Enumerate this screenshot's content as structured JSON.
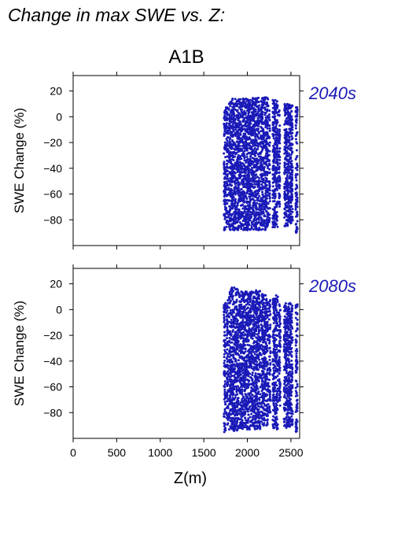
{
  "figure": {
    "title": "Change in max SWE vs. Z:",
    "scenario": "A1B",
    "series_color": "#1a1ab8"
  },
  "chart_data": [
    {
      "type": "scatter",
      "panel_label": "2040s",
      "xlabel": "",
      "ylabel": "SWE Change (%)",
      "xlim": [
        0,
        2600
      ],
      "ylim": [
        -100,
        32
      ],
      "xticks": [
        0,
        500,
        1000,
        1500,
        2000,
        2500
      ],
      "xtick_labels": [],
      "yticks": [
        20,
        0,
        -20,
        -40,
        -60,
        -80
      ],
      "ytick_labels": [
        "20",
        "0",
        "−20",
        "−40",
        "−60",
        "−80"
      ],
      "points": [
        [
          1735,
          -88
        ],
        [
          1740,
          -60
        ],
        [
          1745,
          -20
        ],
        [
          1750,
          5
        ],
        [
          1760,
          -75
        ],
        [
          1770,
          -45
        ],
        [
          1790,
          10
        ],
        [
          1800,
          -85
        ],
        [
          1810,
          -30
        ],
        [
          1830,
          14
        ],
        [
          1850,
          -88
        ],
        [
          1860,
          -50
        ],
        [
          1880,
          12
        ],
        [
          1900,
          -80
        ],
        [
          1920,
          -10
        ],
        [
          1950,
          14
        ],
        [
          1980,
          -70
        ],
        [
          2000,
          -88
        ],
        [
          2010,
          -35
        ],
        [
          2030,
          13
        ],
        [
          2050,
          -85
        ],
        [
          2070,
          -20
        ],
        [
          2090,
          14
        ],
        [
          2100,
          -60
        ],
        [
          2130,
          -88
        ],
        [
          2160,
          12
        ],
        [
          2180,
          -40
        ],
        [
          2200,
          15
        ],
        [
          2230,
          -80
        ],
        [
          2260,
          -20
        ],
        [
          2300,
          -85
        ],
        [
          2330,
          10
        ],
        [
          2350,
          -50
        ],
        [
          2370,
          -10
        ],
        [
          2430,
          9
        ],
        [
          2460,
          -70
        ],
        [
          2480,
          -30
        ],
        [
          2500,
          -80
        ],
        [
          2510,
          8
        ],
        [
          2560,
          -90
        ],
        [
          2570,
          -55
        ],
        [
          2575,
          5
        ]
      ],
      "clusters": [
        {
          "x_range": [
            1730,
            1750
          ],
          "y_range": [
            -88,
            5
          ]
        },
        {
          "x_range": [
            1755,
            1775
          ],
          "y_range": [
            -86,
            8
          ]
        },
        {
          "x_range": [
            1785,
            1870
          ],
          "y_range": [
            -88,
            14
          ]
        },
        {
          "x_range": [
            1875,
            2040
          ],
          "y_range": [
            -88,
            14
          ]
        },
        {
          "x_range": [
            2045,
            2140
          ],
          "y_range": [
            -88,
            15
          ]
        },
        {
          "x_range": [
            2150,
            2240
          ],
          "y_range": [
            -88,
            15
          ]
        },
        {
          "x_range": [
            2250,
            2260
          ],
          "y_range": [
            -82,
            10
          ]
        },
        {
          "x_range": [
            2290,
            2350
          ],
          "y_range": [
            -86,
            13
          ]
        },
        {
          "x_range": [
            2360,
            2375
          ],
          "y_range": [
            -70,
            5
          ]
        },
        {
          "x_range": [
            2425,
            2520
          ],
          "y_range": [
            -85,
            10
          ]
        },
        {
          "x_range": [
            2555,
            2575
          ],
          "y_range": [
            -90,
            10
          ]
        }
      ]
    },
    {
      "type": "scatter",
      "panel_label": "2080s",
      "xlabel": "Z(m)",
      "ylabel": "SWE Change (%)",
      "xlim": [
        0,
        2600
      ],
      "ylim": [
        -100,
        32
      ],
      "xticks": [
        0,
        500,
        1000,
        1500,
        2000,
        2500
      ],
      "xtick_labels": [
        "0",
        "500",
        "1000",
        "1500",
        "2000",
        "2500"
      ],
      "yticks": [
        20,
        0,
        -20,
        -40,
        -60,
        -80
      ],
      "ytick_labels": [
        "20",
        "0",
        "−20",
        "−40",
        "−60",
        "−80"
      ],
      "points": [
        [
          1735,
          -95
        ],
        [
          1740,
          -60
        ],
        [
          1745,
          -20
        ],
        [
          1750,
          5
        ],
        [
          1760,
          -80
        ],
        [
          1775,
          -40
        ],
        [
          1790,
          8
        ],
        [
          1810,
          -92
        ],
        [
          1830,
          -30
        ],
        [
          1850,
          17
        ],
        [
          1870,
          -90
        ],
        [
          1890,
          -55
        ],
        [
          1910,
          12
        ],
        [
          1930,
          -85
        ],
        [
          1960,
          -10
        ],
        [
          1980,
          14
        ],
        [
          2000,
          -93
        ],
        [
          2020,
          -45
        ],
        [
          2040,
          13
        ],
        [
          2060,
          -88
        ],
        [
          2080,
          -20
        ],
        [
          2100,
          14
        ],
        [
          2120,
          -65
        ],
        [
          2140,
          -90
        ],
        [
          2170,
          12
        ],
        [
          2190,
          -40
        ],
        [
          2210,
          11
        ],
        [
          2230,
          -88
        ],
        [
          2260,
          -15
        ],
        [
          2300,
          -92
        ],
        [
          2330,
          11
        ],
        [
          2350,
          -55
        ],
        [
          2370,
          -5
        ],
        [
          2430,
          -85
        ],
        [
          2460,
          -30
        ],
        [
          2490,
          5
        ],
        [
          2510,
          -60
        ],
        [
          2560,
          -93
        ],
        [
          2570,
          -40
        ],
        [
          2575,
          4
        ]
      ],
      "clusters": [
        {
          "x_range": [
            1730,
            1750
          ],
          "y_range": [
            -95,
            5
          ]
        },
        {
          "x_range": [
            1760,
            1780
          ],
          "y_range": [
            -90,
            8
          ]
        },
        {
          "x_range": [
            1790,
            1900
          ],
          "y_range": [
            -95,
            17
          ]
        },
        {
          "x_range": [
            1905,
            2050
          ],
          "y_range": [
            -93,
            14
          ]
        },
        {
          "x_range": [
            2055,
            2150
          ],
          "y_range": [
            -93,
            15
          ]
        },
        {
          "x_range": [
            2160,
            2240
          ],
          "y_range": [
            -90,
            12
          ]
        },
        {
          "x_range": [
            2250,
            2265
          ],
          "y_range": [
            -80,
            8
          ]
        },
        {
          "x_range": [
            2290,
            2350
          ],
          "y_range": [
            -93,
            11
          ]
        },
        {
          "x_range": [
            2360,
            2380
          ],
          "y_range": [
            -75,
            5
          ]
        },
        {
          "x_range": [
            2420,
            2520
          ],
          "y_range": [
            -92,
            5
          ]
        },
        {
          "x_range": [
            2555,
            2575
          ],
          "y_range": [
            -95,
            4
          ]
        }
      ]
    }
  ]
}
